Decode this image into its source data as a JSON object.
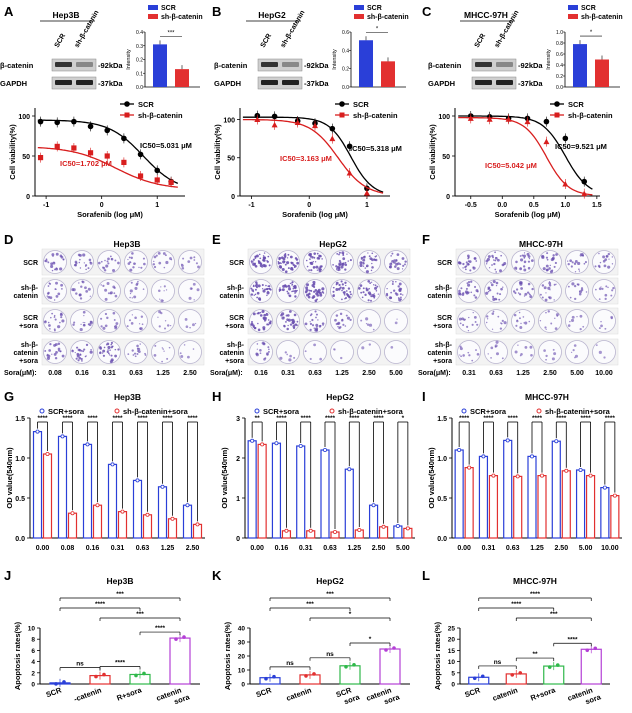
{
  "panel_letters": [
    "A",
    "B",
    "C",
    "D",
    "E",
    "F",
    "G",
    "H",
    "I",
    "J",
    "K",
    "L"
  ],
  "colors": {
    "scr": "#000000",
    "sh": "#d81e1e",
    "blue": "#2a3fd8",
    "red": "#e23030",
    "green": "#2fb84a",
    "purple": "#b43fd6",
    "crystal": "#6a4fb0"
  },
  "blots": [
    {
      "cell": "Hep3B",
      "lanes": [
        "SCR",
        "sh-β-catenin"
      ],
      "rows": [
        "β-catenin",
        "GAPDH"
      ],
      "sizes": [
        "-92kDa",
        "-37kDa"
      ],
      "bar_values": [
        0.31,
        0.13
      ],
      "ylim": [
        0,
        0.4
      ],
      "yticks": [
        "0.4",
        "0.3",
        "0.2",
        "0.1",
        "0.0"
      ],
      "ylabel": "Intensity",
      "sig": "***"
    },
    {
      "cell": "HepG2",
      "lanes": [
        "SCR",
        "sh-β-catenin"
      ],
      "rows": [
        "β-catenin",
        "GAPDH"
      ],
      "sizes": [
        "-92kDa",
        "-37kDa"
      ],
      "bar_values": [
        0.51,
        0.28
      ],
      "ylim": [
        0,
        0.6
      ],
      "yticks": [
        "0.6",
        "0.4",
        "0.2",
        "0.0"
      ],
      "ylabel": "Intensity",
      "sig": "*"
    },
    {
      "cell": "MHCC-97H",
      "lanes": [
        "SCR",
        "sh-β-catenin"
      ],
      "rows": [
        "β-catenin",
        "GAPDH"
      ],
      "sizes": [
        "-92kDa",
        "-37kDa"
      ],
      "bar_values": [
        0.78,
        0.5
      ],
      "ylim": [
        0,
        1.0
      ],
      "yticks": [
        "1.0",
        "0.8",
        "0.6",
        "0.4",
        "0.2",
        "0.0"
      ],
      "ylabel": "Intensity",
      "sig": "*"
    }
  ],
  "legend_ab": [
    "SCR",
    "sh-β-catenin"
  ],
  "chart_data": [
    {
      "type": "line",
      "cell": "Hep3B",
      "xlabel": "Sorafenib (log μM)",
      "ylabel": "Cell viability(%)",
      "xlim": [
        -1.2,
        1.5
      ],
      "ylim": [
        0,
        110
      ],
      "xticks": [
        "-1",
        "0",
        "1"
      ],
      "yticks": [
        "100",
        "50",
        "0"
      ],
      "legend": [
        "SCR",
        "sh-β-catenin"
      ],
      "series": [
        {
          "name": "SCR",
          "x": [
            -1.1,
            -0.8,
            -0.5,
            -0.2,
            0.1,
            0.4,
            0.7,
            1.0,
            1.25
          ],
          "y": [
            93,
            92,
            93,
            87,
            82,
            72,
            52,
            32,
            18
          ]
        },
        {
          "name": "sh-β-catenin",
          "x": [
            -1.1,
            -0.8,
            -0.5,
            -0.2,
            0.1,
            0.4,
            0.7,
            1.0,
            1.25
          ],
          "y": [
            48,
            62,
            60,
            54,
            50,
            42,
            25,
            20,
            17
          ]
        }
      ],
      "ann": [
        "IC50=5.031 μM",
        "IC50=1.702 μM"
      ]
    },
    {
      "type": "line",
      "cell": "HepG2",
      "xlabel": "Sorafenib (log μM)",
      "ylabel": "Cell viability(%)",
      "xlim": [
        -1.2,
        1.4
      ],
      "ylim": [
        0,
        115
      ],
      "xticks": [
        "-1",
        "0",
        "1"
      ],
      "yticks": [
        "100",
        "50",
        "0"
      ],
      "legend": [
        "SCR",
        "sh-β-catenin"
      ],
      "series": [
        {
          "name": "SCR",
          "x": [
            -0.9,
            -0.6,
            -0.2,
            0.1,
            0.4,
            0.7,
            1.0
          ],
          "y": [
            105,
            104,
            98,
            95,
            88,
            65,
            10
          ]
        },
        {
          "name": "sh-β-catenin",
          "x": [
            -0.9,
            -0.6,
            -0.2,
            0.1,
            0.4,
            0.7,
            1.0
          ],
          "y": [
            100,
            93,
            96,
            92,
            75,
            30,
            4
          ]
        }
      ],
      "ann": [
        "IC50=5.318 μM",
        "IC50=3.163 μM"
      ]
    },
    {
      "type": "line",
      "cell": "MHCC-97H",
      "xlabel": "Sorafenib (log μM)",
      "ylabel": "Cell viability(%)",
      "xlim": [
        -0.75,
        1.55
      ],
      "ylim": [
        0,
        110
      ],
      "xticks": [
        "-0.5",
        "0.0",
        "0.5",
        "1.0",
        "1.5"
      ],
      "yticks": [
        "100",
        "50",
        "0"
      ],
      "legend": [
        "SCR",
        "sh-β-catenin"
      ],
      "series": [
        {
          "name": "SCR",
          "x": [
            -0.5,
            -0.2,
            0.1,
            0.4,
            0.7,
            1.0,
            1.3
          ],
          "y": [
            100,
            99,
            97,
            97,
            93,
            72,
            18
          ]
        },
        {
          "name": "sh-β-catenin",
          "x": [
            -0.5,
            -0.2,
            0.1,
            0.4,
            0.7,
            1.0,
            1.3
          ],
          "y": [
            97,
            96,
            96,
            93,
            68,
            15,
            3
          ]
        }
      ],
      "ann": [
        "IC50=9.521 μM",
        "IC50=5.042 μM"
      ]
    },
    {
      "type": "bar",
      "cell": "Hep3B",
      "ylabel": "OD value(540nm)",
      "ylim": [
        0,
        1.5
      ],
      "yticks": [
        "1.5",
        "1.0",
        "0.5",
        "0.0"
      ],
      "categories": [
        "0.00",
        "0.08",
        "0.16",
        "0.31",
        "0.63",
        "1.25",
        "2.50"
      ],
      "legend": [
        "SCR+sora",
        "sh-β-catenin+sora"
      ],
      "series": [
        {
          "name": "SCR+sora",
          "values": [
            1.33,
            1.27,
            1.17,
            0.92,
            0.72,
            0.64,
            0.41
          ]
        },
        {
          "name": "sh-β-catenin+sora",
          "values": [
            1.05,
            0.31,
            0.41,
            0.33,
            0.29,
            0.24,
            0.17
          ]
        }
      ],
      "sig": [
        "****",
        "****",
        "****",
        "****",
        "****",
        "****",
        "****"
      ]
    },
    {
      "type": "bar",
      "cell": "HepG2",
      "ylabel": "OD value(540nm)",
      "ylim": [
        0,
        3
      ],
      "yticks": [
        "3",
        "2",
        "1",
        "0"
      ],
      "categories": [
        "0.00",
        "0.16",
        "0.31",
        "0.63",
        "1.25",
        "2.50",
        "5.00"
      ],
      "legend": [
        "SCR+sora",
        "sh-β-catenin+sora"
      ],
      "series": [
        {
          "name": "SCR+sora",
          "values": [
            2.43,
            2.37,
            2.3,
            2.2,
            1.72,
            0.82,
            0.3
          ]
        },
        {
          "name": "sh-β-catenin+sora",
          "values": [
            2.34,
            0.18,
            0.18,
            0.15,
            0.2,
            0.28,
            0.24
          ]
        }
      ],
      "sig": [
        "**",
        "****",
        "****",
        "****",
        "****",
        "****",
        "*"
      ]
    },
    {
      "type": "bar",
      "cell": "MHCC-97H",
      "ylabel": "OD value(540nm)",
      "ylim": [
        0,
        1.5
      ],
      "yticks": [
        "1.5",
        "1.0",
        "0.5",
        "0.0"
      ],
      "categories": [
        "0.00",
        "0.31",
        "0.63",
        "1.25",
        "2.50",
        "5.00",
        "10.00"
      ],
      "legend": [
        "SCR+sora",
        "sh-β-catenin+sora"
      ],
      "series": [
        {
          "name": "SCR+sora",
          "values": [
            1.1,
            1.02,
            1.22,
            1.02,
            1.21,
            0.85,
            0.63
          ]
        },
        {
          "name": "sh-β-catenin+sora",
          "values": [
            0.88,
            0.78,
            0.77,
            0.78,
            0.84,
            0.78,
            0.53
          ]
        }
      ],
      "sig": [
        "****",
        "****",
        "****",
        "****",
        "****",
        "****",
        "****"
      ]
    },
    {
      "type": "bar",
      "cell": "Hep3B",
      "ylabel": "Apoptosis rates(%)",
      "ylim": [
        0,
        10
      ],
      "yticks": [
        "10",
        "8",
        "6",
        "4",
        "2",
        "0"
      ],
      "categories": [
        "SCR",
        "sh-β-catenin",
        "SCR+sora",
        "sh-β-catenin+sora"
      ],
      "values": [
        0.2,
        1.5,
        1.7,
        8.2
      ],
      "cat_labels": [
        "SCR",
        "-catenin",
        "R+sora",
        "catenin"
      ],
      "sub_labels": [
        "",
        "",
        "",
        "sora"
      ],
      "sig": [
        "***",
        "****",
        "***",
        "ns",
        "****",
        "****"
      ]
    },
    {
      "type": "bar",
      "cell": "HepG2",
      "ylabel": "Apoptosis rates(%)",
      "ylim": [
        0,
        40
      ],
      "yticks": [
        "40",
        "30",
        "20",
        "10",
        "0"
      ],
      "categories": [
        "SCR",
        "sh-β-catenin",
        "SCR+sora",
        "sh-β-catenin+sora"
      ],
      "values": [
        4.5,
        6.5,
        13,
        25
      ],
      "cat_labels": [
        "SCR",
        "catenin",
        "SCR",
        "catenin"
      ],
      "sub_labels": [
        "",
        "",
        "sora",
        "sora"
      ],
      "sig": [
        "***",
        "***",
        "*",
        "ns",
        "ns",
        "*"
      ]
    },
    {
      "type": "bar",
      "cell": "MHCC-97H",
      "ylabel": "Apoptosis rates(%)",
      "ylim": [
        0,
        25
      ],
      "yticks": [
        "25",
        "20",
        "15",
        "10",
        "5",
        "0"
      ],
      "categories": [
        "SCR",
        "sh-β-catenin",
        "SCR+sora",
        "sh-β-catenin+sora"
      ],
      "values": [
        3,
        4.5,
        8,
        15.5
      ],
      "cat_labels": [
        "SCR",
        "catenin",
        "R+sora",
        "catenin"
      ],
      "sub_labels": [
        "",
        "",
        "",
        "sora"
      ],
      "sig": [
        "****",
        "****",
        "***",
        "ns",
        "**",
        "****"
      ]
    }
  ],
  "colony": [
    {
      "cell": "Hep3B",
      "rows": [
        "SCR",
        "sh-β-\ncatenin",
        "SCR\n+sora",
        "sh-β-\ncatenin\n+sora"
      ],
      "doses": [
        "0.08",
        "0.16",
        "0.31",
        "0.63",
        "1.25",
        "2.50"
      ],
      "density": [
        [
          0.5,
          0.45,
          0.4,
          0.38,
          0.32,
          0.25
        ],
        [
          0.4,
          0.35,
          0.3,
          0.28,
          0.2,
          0.15
        ],
        [
          0.45,
          0.35,
          0.3,
          0.25,
          0.2,
          0.12
        ],
        [
          0.5,
          0.6,
          0.7,
          0.35,
          0.2,
          0.12
        ]
      ]
    },
    {
      "cell": "HepG2",
      "rows": [
        "SCR",
        "sh-β-\ncatenin",
        "SCR\n+sora",
        "sh-β-\ncatenin\n+sora"
      ],
      "doses": [
        "0.16",
        "0.31",
        "0.63",
        "1.25",
        "2.50",
        "5.00"
      ],
      "density": [
        [
          0.85,
          0.85,
          0.8,
          0.75,
          0.7,
          0.55
        ],
        [
          0.85,
          0.82,
          0.8,
          0.8,
          0.75,
          0.6
        ],
        [
          0.8,
          0.7,
          0.55,
          0.4,
          0.15,
          0.05
        ],
        [
          0.4,
          0.15,
          0.1,
          0.08,
          0.05,
          0.03
        ]
      ]
    },
    {
      "cell": "MHCC-97H",
      "rows": [
        "SCR",
        "sh-β-\ncatenin",
        "SCR\n+sora",
        "sh-β-\ncatenin\n+sora"
      ],
      "doses": [
        "0.31",
        "0.63",
        "1.25",
        "2.50",
        "5.00",
        "10.00"
      ],
      "density": [
        [
          0.55,
          0.55,
          0.5,
          0.5,
          0.45,
          0.4
        ],
        [
          0.5,
          0.5,
          0.45,
          0.4,
          0.35,
          0.3
        ],
        [
          0.35,
          0.3,
          0.3,
          0.25,
          0.2,
          0.15
        ],
        [
          0.25,
          0.2,
          0.18,
          0.15,
          0.12,
          0.08
        ]
      ]
    }
  ],
  "sora_label": "Sora(μM):"
}
